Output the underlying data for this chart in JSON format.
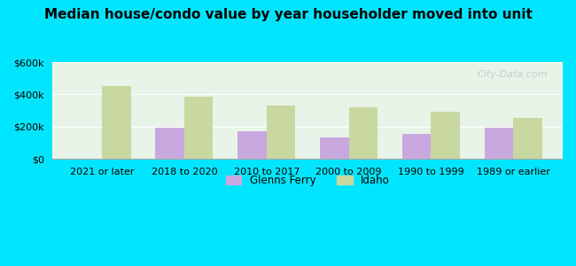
{
  "title": "Median house/condo value by year householder moved into unit",
  "categories": [
    "2021 or later",
    "2018 to 2020",
    "2010 to 2017",
    "2000 to 2009",
    "1990 to 1999",
    "1989 or earlier"
  ],
  "glenns_ferry": [
    null,
    195000,
    170000,
    135000,
    155000,
    195000
  ],
  "idaho": [
    450000,
    385000,
    330000,
    320000,
    290000,
    255000
  ],
  "glenns_ferry_color": "#c9a8e0",
  "idaho_color": "#c8d8a0",
  "background_outer": "#00e5ff",
  "background_inner_top": "#e8f5e9",
  "background_inner_bottom": "#f0f8f0",
  "ylim": [
    0,
    600000
  ],
  "yticks": [
    0,
    200000,
    400000,
    600000
  ],
  "ytick_labels": [
    "$0",
    "$200k",
    "$400k",
    "$600k"
  ],
  "bar_width": 0.35,
  "legend_labels": [
    "Glenns Ferry",
    "Idaho"
  ],
  "watermark": "City-Data.com"
}
